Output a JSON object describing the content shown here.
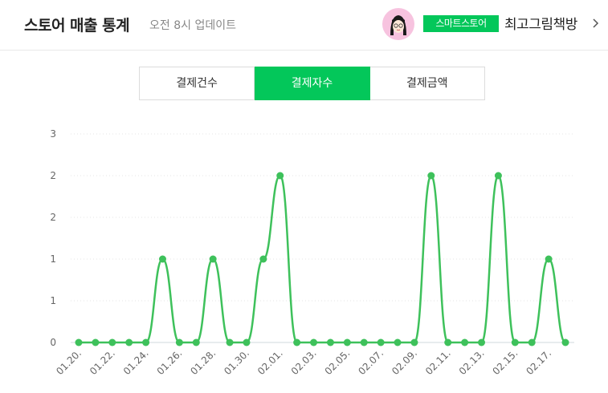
{
  "header": {
    "title": "스토어 매출 통계",
    "updated": "오전 8시 업데이트",
    "store_badge": "스마트스토어",
    "store_name": "최고그림책방"
  },
  "tabs": [
    {
      "label": "결제건수",
      "active": false
    },
    {
      "label": "결제자수",
      "active": true
    },
    {
      "label": "결제금액",
      "active": false
    }
  ],
  "colors": {
    "accent": "#03c75a",
    "line": "#3ec15b",
    "grid": "#dddddd"
  },
  "chart_data": {
    "type": "line",
    "y_tick_labels": [
      "0",
      "1",
      "1",
      "2",
      "2",
      "3"
    ],
    "ylim": [
      0,
      2.5
    ],
    "x": [
      "01.20.",
      "01.21.",
      "01.22.",
      "01.23.",
      "01.24.",
      "01.25.",
      "01.26.",
      "01.27.",
      "01.28.",
      "01.29.",
      "01.30.",
      "01.31.",
      "02.01.",
      "02.02.",
      "02.03.",
      "02.04.",
      "02.05.",
      "02.06.",
      "02.07.",
      "02.08.",
      "02.09.",
      "02.10.",
      "02.11.",
      "02.12.",
      "02.13.",
      "02.14.",
      "02.15.",
      "02.16.",
      "02.17.",
      "02.18."
    ],
    "x_tick_labels": [
      "01.20.",
      "01.22.",
      "01.24.",
      "01.26.",
      "01.28.",
      "01.30.",
      "02.01.",
      "02.03.",
      "02.05.",
      "02.07.",
      "02.09.",
      "02.11.",
      "02.13.",
      "02.15.",
      "02.17."
    ],
    "series": [
      {
        "values": [
          0,
          0,
          0,
          0,
          0,
          1,
          0,
          0,
          1,
          0,
          0,
          1,
          2,
          0,
          0,
          0,
          0,
          0,
          0,
          0,
          0,
          2,
          0,
          0,
          0,
          2,
          0,
          0,
          1,
          0
        ]
      }
    ],
    "grid": true
  }
}
